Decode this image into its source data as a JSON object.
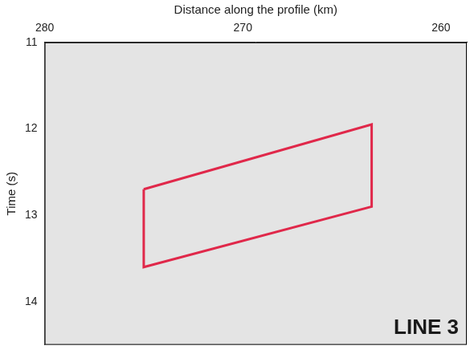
{
  "chart_data": {
    "type": "line",
    "x_label": "Distance along the profile (km)",
    "y_label": "Time (s)",
    "annotation": "LINE 3",
    "x": [
      275,
      263.5,
      263.5,
      275,
      275
    ],
    "values": [
      12.7,
      11.95,
      12.9,
      13.6,
      12.7
    ],
    "color": "#e0284a",
    "xlim": [
      280,
      258.7
    ],
    "xticks": [
      280,
      270,
      260
    ],
    "ylim": [
      11,
      14.5
    ],
    "yticks": [
      11,
      12,
      13,
      14
    ],
    "grid": false
  }
}
